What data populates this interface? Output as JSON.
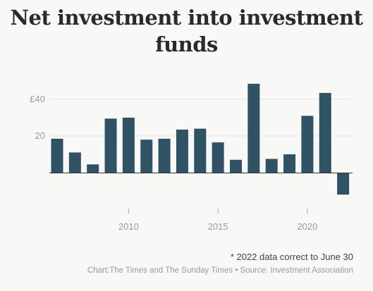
{
  "chart_data": {
    "type": "bar",
    "title": "Net investment into investment funds",
    "x": [
      2006,
      2007,
      2008,
      2009,
      2010,
      2011,
      2012,
      2013,
      2014,
      2015,
      2016,
      2017,
      2018,
      2019,
      2020,
      2021,
      2022
    ],
    "values": [
      18.5,
      11,
      4.5,
      29.5,
      30,
      18,
      18.5,
      23.5,
      24,
      16.5,
      7,
      48.5,
      7.5,
      10,
      31,
      43.5,
      -12
    ],
    "xticks": [
      2010,
      2015,
      2020
    ],
    "xtick_labels": [
      "2010",
      "2015",
      "2020"
    ],
    "yticks": [
      20,
      40
    ],
    "ytick_labels": [
      "20",
      "£40"
    ],
    "ylim": [
      -16,
      56
    ],
    "grid": true,
    "bar_color": "#2f5264",
    "note": "* 2022 data correct to June 30",
    "source": "Chart:The Times and The Sunday Times • Source: Investment Association"
  }
}
